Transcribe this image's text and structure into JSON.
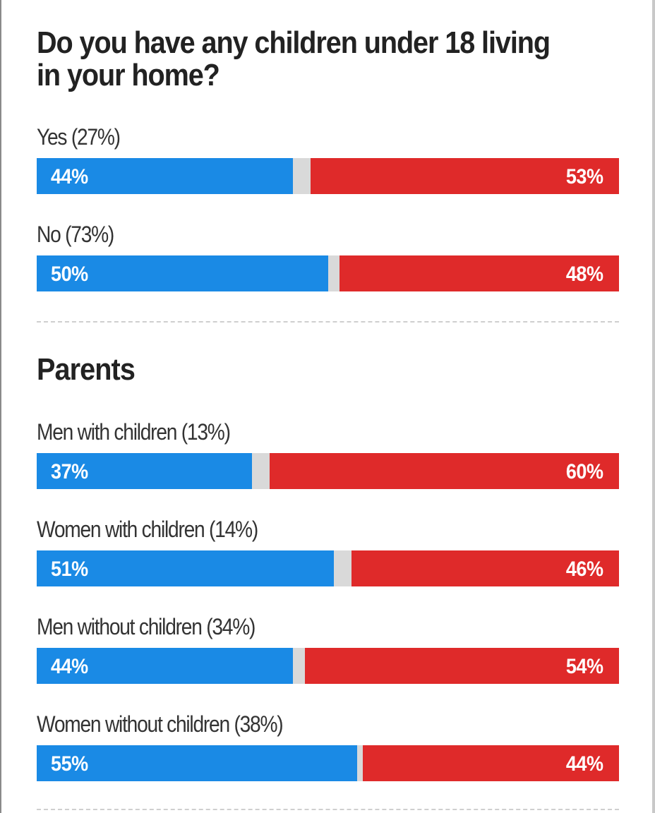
{
  "title": "Do you have any children under 18 living in your home?",
  "colors": {
    "blue": "#1a8ae5",
    "red": "#df2a2a",
    "gray": "#d9d9d9"
  },
  "chart_data": [
    {
      "type": "bar",
      "orientation": "horizontal-stacked",
      "title": "Do you have any children under 18 living in your home?",
      "categories": [
        "Yes (27%)",
        "No (73%)"
      ],
      "series": [
        {
          "color": "#1a8ae5",
          "values": [
            44,
            50
          ],
          "labels": [
            "44%",
            "50%"
          ]
        },
        {
          "color": "#df2a2a",
          "values": [
            53,
            48
          ],
          "labels": [
            "53%",
            "48%"
          ]
        }
      ],
      "xlim": [
        0,
        100
      ]
    },
    {
      "type": "bar",
      "orientation": "horizontal-stacked",
      "title": "Parents",
      "categories": [
        "Men with children (13%)",
        "Women with children (14%)",
        "Men without children (34%)",
        "Women without children (38%)"
      ],
      "series": [
        {
          "color": "#1a8ae5",
          "values": [
            37,
            51,
            44,
            55
          ],
          "labels": [
            "37%",
            "51%",
            "44%",
            "55%"
          ]
        },
        {
          "color": "#df2a2a",
          "values": [
            60,
            46,
            54,
            44
          ],
          "labels": [
            "60%",
            "46%",
            "54%",
            "44%"
          ]
        }
      ],
      "xlim": [
        0,
        100
      ]
    }
  ]
}
